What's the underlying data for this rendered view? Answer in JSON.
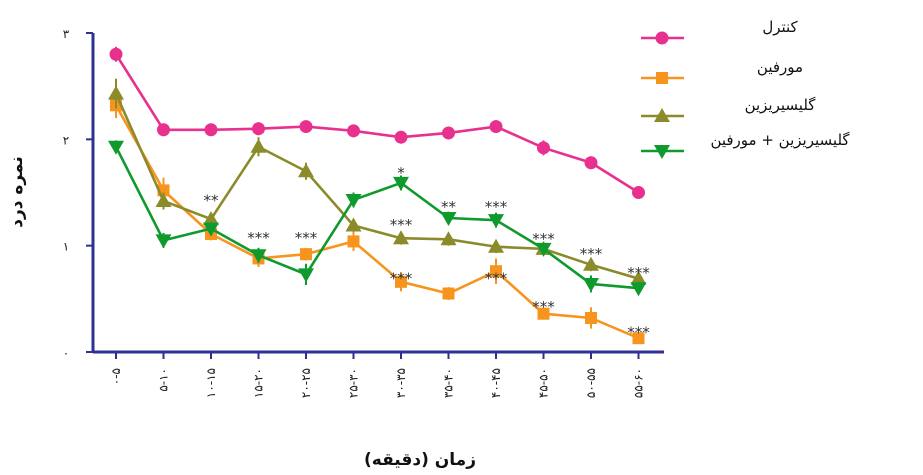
{
  "chart_data": {
    "type": "line",
    "xlabel": "زمان (دقیقه)",
    "ylabel": "نمره درد",
    "categories": [
      "۰-۵",
      "۵-۱۰",
      "۱۰-۱۵",
      "۱۵-۲۰",
      "۲۰-۲۵",
      "۲۵-۳۰",
      "۳۰-۳۵",
      "۳۵-۴۰",
      "۴۰-۴۵",
      "۴۵-۵۰",
      "۵۰-۵۵",
      "۵۵-۶۰"
    ],
    "ylim": [
      0,
      3
    ],
    "yticks": [
      0,
      1,
      2,
      3
    ],
    "ytick_labels": [
      "۰",
      "۱",
      "۲",
      "۳"
    ],
    "legend_position": "top-right",
    "series": [
      {
        "name": "کنترل",
        "color": "#e8318f",
        "marker": "circle",
        "values": [
          2.8,
          2.09,
          2.09,
          2.1,
          2.12,
          2.08,
          2.02,
          2.06,
          2.12,
          1.92,
          1.78,
          1.5
        ],
        "errors": [
          0.07,
          0.06,
          0.05,
          0.06,
          0.05,
          0.06,
          0.06,
          0.06,
          0.06,
          0.07,
          0.06,
          0.06
        ],
        "annotations": []
      },
      {
        "name": "مورفین",
        "color": "#f7941d",
        "marker": "square",
        "values": [
          2.32,
          1.52,
          1.11,
          0.88,
          0.92,
          1.04,
          0.66,
          0.55,
          0.76,
          0.36,
          0.32,
          0.13
        ],
        "errors": [
          0.12,
          0.12,
          0.06,
          0.08,
          0.06,
          0.09,
          0.09,
          0.06,
          0.12,
          0.05,
          0.1,
          0.04
        ],
        "annotations": [
          "",
          "",
          "",
          "***",
          "***",
          "",
          "***",
          "",
          "***",
          "***",
          "",
          "***"
        ]
      },
      {
        "name": "گلیسیریزین",
        "color": "#8b8b2a",
        "marker": "triangle-up",
        "values": [
          2.43,
          1.42,
          1.25,
          1.93,
          1.7,
          1.19,
          1.07,
          1.06,
          0.99,
          0.97,
          0.82,
          0.69
        ],
        "errors": [
          0.14,
          0.08,
          0.05,
          0.09,
          0.08,
          0.06,
          0.06,
          0.06,
          0.06,
          0.06,
          0.06,
          0.05
        ],
        "annotations": [
          "",
          "",
          "**",
          "",
          "",
          "",
          "***",
          "",
          "",
          "",
          "",
          "***"
        ]
      },
      {
        "name": "گلیسیریزین + مورفین",
        "color": "#0f9a2d",
        "marker": "triangle-down",
        "values": [
          1.93,
          1.05,
          1.16,
          0.91,
          0.73,
          1.43,
          1.59,
          1.26,
          1.24,
          0.97,
          0.64,
          0.6
        ],
        "errors": [
          0.06,
          0.07,
          0.06,
          0.07,
          0.1,
          0.07,
          0.07,
          0.06,
          0.07,
          0.06,
          0.08,
          0.06
        ],
        "annotations": [
          "",
          "",
          "",
          "",
          "",
          "",
          "*",
          "**",
          "***",
          "***",
          "***",
          ""
        ]
      }
    ]
  }
}
